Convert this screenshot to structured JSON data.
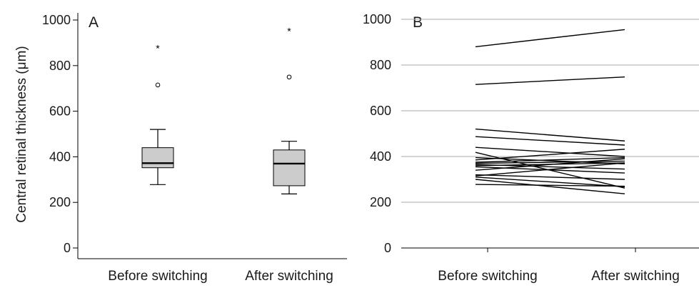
{
  "figure": {
    "ylabel": "Central retinal thickness (μm)",
    "colors": {
      "box_fill": "#cccccc",
      "stroke": "#000000",
      "grid": "#aaaaaa"
    }
  },
  "chart_data": [
    {
      "panel": "A",
      "type": "box",
      "title": "",
      "xlabel": "",
      "ylabel": "Central retinal thickness (μm)",
      "ylim": [
        0,
        1000
      ],
      "yticks": [
        0,
        200,
        400,
        600,
        800,
        1000
      ],
      "grid": false,
      "categories": [
        "Before switching",
        "After switching"
      ],
      "boxes": [
        {
          "category": "Before switching",
          "whisker_low": 278,
          "q1": 352,
          "median": 372,
          "q3": 440,
          "whisker_high": 520,
          "outlier": 715,
          "extreme": 880
        },
        {
          "category": "After switching",
          "whisker_low": 237,
          "q1": 273,
          "median": 370,
          "q3": 430,
          "whisker_high": 468,
          "outlier": 750,
          "extreme": 955
        }
      ]
    },
    {
      "panel": "B",
      "type": "line",
      "title": "",
      "xlabel": "",
      "ylabel": "",
      "ylim": [
        0,
        1000
      ],
      "yticks": [
        0,
        200,
        400,
        600,
        800,
        1000
      ],
      "grid": true,
      "categories": [
        "Before switching",
        "After switching"
      ],
      "pairs": [
        [
          880,
          955
        ],
        [
          715,
          748
        ],
        [
          520,
          468
        ],
        [
          487,
          450
        ],
        [
          440,
          400
        ],
        [
          418,
          262
        ],
        [
          395,
          368
        ],
        [
          385,
          432
        ],
        [
          375,
          395
        ],
        [
          370,
          380
        ],
        [
          365,
          345
        ],
        [
          360,
          372
        ],
        [
          355,
          328
        ],
        [
          340,
          390
        ],
        [
          320,
          300
        ],
        [
          315,
          372
        ],
        [
          310,
          268
        ],
        [
          300,
          237
        ],
        [
          278,
          270
        ]
      ]
    }
  ]
}
